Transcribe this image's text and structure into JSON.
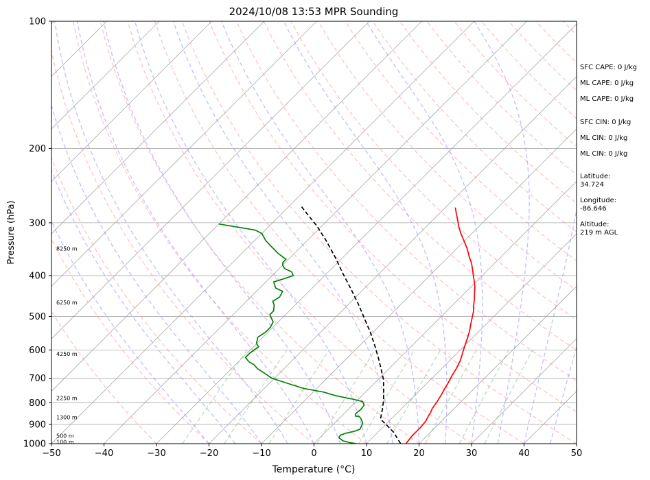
{
  "chart_data": {
    "type": "line",
    "title": "2024/10/08 13:53 MPR Sounding",
    "xlabel": "Temperature (°C)",
    "ylabel": "Pressure (hPa)",
    "xlim": [
      -50,
      50
    ],
    "ylim": [
      1000,
      100
    ],
    "y_scale": "log",
    "x_ticks": [
      -50,
      -40,
      -30,
      -20,
      -10,
      0,
      10,
      20,
      30,
      40,
      50
    ],
    "y_ticks": [
      100,
      200,
      300,
      400,
      500,
      600,
      700,
      800,
      900,
      1000
    ],
    "grid": "horizontal pressure lines and skewed isotherms",
    "height_labels": [
      {
        "label": "100 m",
        "p": 991
      },
      {
        "label": "500 m",
        "p": 958
      },
      {
        "label": "1300 m",
        "p": 866
      },
      {
        "label": "2250 m",
        "p": 780
      },
      {
        "label": "4250 m",
        "p": 613
      },
      {
        "label": "6250 m",
        "p": 463
      },
      {
        "label": "8250 m",
        "p": 345
      }
    ],
    "series": [
      {
        "color": "#ff0000",
        "points": [
          [
            17.5,
            1000
          ],
          [
            17.2,
            960
          ],
          [
            17.2,
            915
          ],
          [
            17.0,
            885
          ],
          [
            16.5,
            860
          ],
          [
            16.3,
            845
          ],
          [
            15.8,
            825
          ],
          [
            15.5,
            800
          ],
          [
            15.0,
            770
          ],
          [
            14.4,
            740
          ],
          [
            13.9,
            715
          ],
          [
            13.3,
            690
          ],
          [
            12.8,
            665
          ],
          [
            12.0,
            635
          ],
          [
            11.0,
            610
          ],
          [
            10.2,
            590
          ],
          [
            9.2,
            565
          ],
          [
            8.2,
            542
          ],
          [
            7.0,
            520
          ],
          [
            6.2,
            505
          ],
          [
            5.2,
            487
          ],
          [
            4.0,
            470
          ],
          [
            3.0,
            455
          ],
          [
            1.7,
            438
          ],
          [
            0.8,
            426
          ],
          [
            -0.3,
            414
          ],
          [
            -1.7,
            400
          ],
          [
            -3.0,
            387
          ],
          [
            -4.4,
            374
          ],
          [
            -6.2,
            360
          ],
          [
            -7.8,
            347
          ],
          [
            -9.8,
            333
          ],
          [
            -12.1,
            318
          ],
          [
            -13.7,
            307
          ],
          [
            -15.2,
            296
          ],
          [
            -16.8,
            285
          ],
          [
            -18.1,
            276
          ]
        ]
      },
      {
        "color": "#008000",
        "points": [
          [
            8.0,
            1000
          ],
          [
            6.8,
            995
          ],
          [
            5.0,
            985
          ],
          [
            3.6,
            968
          ],
          [
            3.4,
            955
          ],
          [
            4.0,
            945
          ],
          [
            5.3,
            935
          ],
          [
            6.0,
            925
          ],
          [
            5.4,
            895
          ],
          [
            4.6,
            880
          ],
          [
            4.0,
            870
          ],
          [
            3.4,
            862
          ],
          [
            2.6,
            860
          ],
          [
            2.2,
            850
          ],
          [
            2.4,
            830
          ],
          [
            2.2,
            810
          ],
          [
            1.2,
            795
          ],
          [
            -1.0,
            785
          ],
          [
            -5.0,
            770
          ],
          [
            -8.0,
            755
          ],
          [
            -12.5,
            740
          ],
          [
            -15.5,
            725
          ],
          [
            -20.5,
            700
          ],
          [
            -23.0,
            680
          ],
          [
            -25.0,
            665
          ],
          [
            -26.5,
            650
          ],
          [
            -28.0,
            640
          ],
          [
            -29.5,
            625
          ],
          [
            -29.5,
            610
          ],
          [
            -29.0,
            590
          ],
          [
            -30.0,
            580
          ],
          [
            -31.0,
            560
          ],
          [
            -30.5,
            545
          ],
          [
            -30.5,
            530
          ],
          [
            -31.0,
            515
          ],
          [
            -32.0,
            505
          ],
          [
            -33.0,
            495
          ],
          [
            -33.0,
            485
          ],
          [
            -34.0,
            470
          ],
          [
            -35.0,
            460
          ],
          [
            -34.5,
            450
          ],
          [
            -35.0,
            436
          ],
          [
            -37.0,
            428
          ],
          [
            -38.5,
            414
          ],
          [
            -37.0,
            406
          ],
          [
            -36.0,
            400
          ],
          [
            -37.0,
            392
          ],
          [
            -39.0,
            385
          ],
          [
            -40.0,
            378
          ],
          [
            -40.5,
            372
          ],
          [
            -40.5,
            366
          ],
          [
            -43.0,
            355
          ],
          [
            -46.0,
            340
          ],
          [
            -48.0,
            330
          ],
          [
            -50.0,
            318
          ],
          [
            -52.0,
            312
          ],
          [
            -60.0,
            302
          ]
        ]
      },
      {
        "color": "#000000",
        "style": "dashed",
        "points": [
          [
            16.5,
            1000
          ],
          [
            13.0,
            940
          ],
          [
            10.0,
            900
          ],
          [
            8.0,
            875
          ],
          [
            7.5,
            860
          ],
          [
            6.5,
            830
          ],
          [
            5.0,
            790
          ],
          [
            3.2,
            750
          ],
          [
            1.0,
            705
          ],
          [
            -1.5,
            665
          ],
          [
            -4.2,
            625
          ],
          [
            -7.2,
            585
          ],
          [
            -10.5,
            545
          ],
          [
            -14.2,
            506
          ],
          [
            -18.2,
            467
          ],
          [
            -22.5,
            430
          ],
          [
            -27.0,
            395
          ],
          [
            -31.5,
            362
          ],
          [
            -36.5,
            330
          ],
          [
            -41.0,
            305
          ],
          [
            -45.5,
            284
          ],
          [
            -47.5,
            275
          ]
        ]
      }
    ],
    "annotations": {
      "sfc_cape": "SFC CAPE: 0 J/kg",
      "ml_cape_1": "ML CAPE: 0 J/kg",
      "ml_cape_2": "ML CAPE: 0 J/kg",
      "sfc_cin": "SFC CIN: 0 J/kg",
      "ml_cin_1": "ML CIN: 0 J/kg",
      "ml_cin_2": "ML CIN: 0 J/kg",
      "latitude_label": "Latitude:",
      "latitude": "34.724",
      "longitude_label": "Longitude:",
      "longitude": "-86.646",
      "altitude_label": "Altitude:",
      "altitude": "219 m AGL"
    },
    "colors": {
      "temperature": "#ff0000",
      "dewpoint": "#008000",
      "parcel": "#000000",
      "dry_adiabats": "#ff9999",
      "moist_adiabats": "#9a8cff",
      "mixing_ratio": "#7fbf7f",
      "isotherms": "#a9a9a9"
    }
  }
}
